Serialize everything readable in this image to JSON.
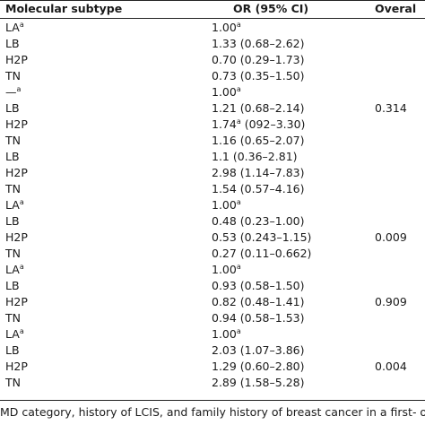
{
  "table": {
    "headers": {
      "subtype": "Molecular subtype",
      "or": "OR (95% CI)",
      "overall": "Overal"
    },
    "rows": [
      {
        "subtype": "LA",
        "subtype_sup": "a",
        "or": "1.00",
        "or_sup": "a",
        "or_rest": "",
        "overall": ""
      },
      {
        "subtype": "LB",
        "subtype_sup": "",
        "or": "1.33 (0.68–2.62)",
        "or_sup": "",
        "or_rest": "",
        "overall": ""
      },
      {
        "subtype": "H2P",
        "subtype_sup": "",
        "or": "0.70 (0.29–1.73)",
        "or_sup": "",
        "or_rest": "",
        "overall": ""
      },
      {
        "subtype": "TN",
        "subtype_sup": "",
        "or": "0.73 (0.35–1.50)",
        "or_sup": "",
        "or_rest": "",
        "overall": ""
      },
      {
        "subtype": "—",
        "subtype_sup": "a",
        "or": "1.00",
        "or_sup": "a",
        "or_rest": "",
        "overall": ""
      },
      {
        "subtype": "LB",
        "subtype_sup": "",
        "or": "1.21 (0.68–2.14)",
        "or_sup": "",
        "or_rest": "",
        "overall": "0.314"
      },
      {
        "subtype": "H2P",
        "subtype_sup": "",
        "or": "1.74",
        "or_sup": "a",
        "or_rest": " (092–3.30)",
        "overall": ""
      },
      {
        "subtype": "TN",
        "subtype_sup": "",
        "or": "1.16 (0.65–2.07)",
        "or_sup": "",
        "or_rest": "",
        "overall": ""
      },
      {
        "subtype": "LB",
        "subtype_sup": "",
        "or": "1.1 (0.36–2.81)",
        "or_sup": "",
        "or_rest": "",
        "overall": ""
      },
      {
        "subtype": "H2P",
        "subtype_sup": "",
        "or": "2.98 (1.14–7.83)",
        "or_sup": "",
        "or_rest": "",
        "overall": ""
      },
      {
        "subtype": "TN",
        "subtype_sup": "",
        "or": "1.54 (0.57–4.16)",
        "or_sup": "",
        "or_rest": "",
        "overall": ""
      },
      {
        "subtype": "LA",
        "subtype_sup": "a",
        "or": "1.00",
        "or_sup": "a",
        "or_rest": "",
        "overall": ""
      },
      {
        "subtype": "LB",
        "subtype_sup": "",
        "or": "0.48 (0.23–1.00)",
        "or_sup": "",
        "or_rest": "",
        "overall": ""
      },
      {
        "subtype": "H2P",
        "subtype_sup": "",
        "or": "0.53 (0.243–1.15)",
        "or_sup": "",
        "or_rest": "",
        "overall": "0.009"
      },
      {
        "subtype": "TN",
        "subtype_sup": "",
        "or": "0.27 (0.11–0.662)",
        "or_sup": "",
        "or_rest": "",
        "overall": ""
      },
      {
        "subtype": "LA",
        "subtype_sup": "a",
        "or": "1.00",
        "or_sup": "a",
        "or_rest": "",
        "overall": ""
      },
      {
        "subtype": "LB",
        "subtype_sup": "",
        "or": "0.93 (0.58–1.50)",
        "or_sup": "",
        "or_rest": "",
        "overall": ""
      },
      {
        "subtype": "H2P",
        "subtype_sup": "",
        "or": "0.82 (0.48–1.41)",
        "or_sup": "",
        "or_rest": "",
        "overall": "0.909"
      },
      {
        "subtype": "TN",
        "subtype_sup": "",
        "or": "0.94 (0.58–1.53)",
        "or_sup": "",
        "or_rest": "",
        "overall": ""
      },
      {
        "subtype": "LA",
        "subtype_sup": "a",
        "or": "1.00",
        "or_sup": "a",
        "or_rest": "",
        "overall": ""
      },
      {
        "subtype": "LB",
        "subtype_sup": "",
        "or": "2.03 (1.07–3.86)",
        "or_sup": "",
        "or_rest": "",
        "overall": ""
      },
      {
        "subtype": "H2P",
        "subtype_sup": "",
        "or": "1.29 (0.60–2.80)",
        "or_sup": "",
        "or_rest": "",
        "overall": "0.004"
      },
      {
        "subtype": "TN",
        "subtype_sup": "",
        "or": "2.89 (1.58–5.28)",
        "or_sup": "",
        "or_rest": "",
        "overall": ""
      }
    ]
  },
  "footnote": "MD category, history of LCIS, and family history of breast cancer in a first- or s"
}
